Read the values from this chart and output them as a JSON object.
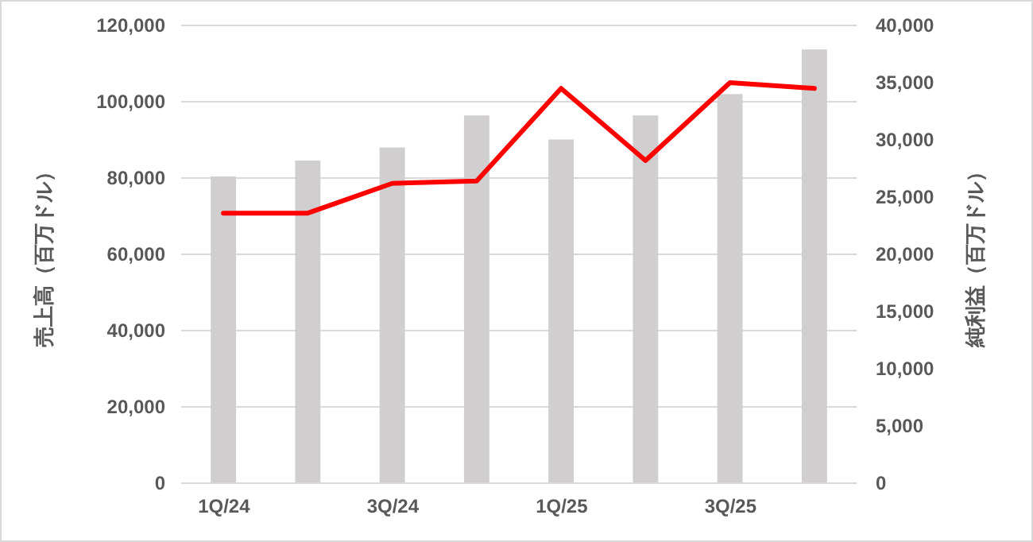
{
  "chart_data": {
    "type": "bar",
    "categories": [
      "1Q/24",
      null,
      "3Q/24",
      null,
      "1Q/25",
      null,
      "3Q/25",
      null
    ],
    "ylabel": "売上高（百万ドル）",
    "y2label": "純利益（百万ドル）",
    "series": [
      {
        "color": "#d0cece",
        "values": [
          80400,
          84600,
          88000,
          96400,
          90100,
          96400,
          102000,
          113700
        ]
      },
      {
        "type": "line",
        "axis": "y2",
        "color": "#ff0000",
        "values": [
          23600,
          23600,
          26200,
          26400,
          34500,
          28200,
          35000,
          34500
        ]
      }
    ],
    "ylim": [
      0,
      120000
    ],
    "yticks": [
      {
        "value": 0,
        "label": "0"
      },
      {
        "value": 20000,
        "label": "20,000"
      },
      {
        "value": 40000,
        "label": "40,000"
      },
      {
        "value": 60000,
        "label": "60,000"
      },
      {
        "value": 80000,
        "label": "80,000"
      },
      {
        "value": 100000,
        "label": "100,000"
      },
      {
        "value": 120000,
        "label": "120,000"
      }
    ],
    "y2lim": [
      0,
      40000
    ],
    "y2ticks": [
      {
        "value": 0,
        "label": "0"
      },
      {
        "value": 5000,
        "label": "5,000"
      },
      {
        "value": 10000,
        "label": "10,000"
      },
      {
        "value": 15000,
        "label": "15,000"
      },
      {
        "value": 20000,
        "label": "20,000"
      },
      {
        "value": 25000,
        "label": "25,000"
      },
      {
        "value": 30000,
        "label": "30,000"
      },
      {
        "value": 35000,
        "label": "35,000"
      },
      {
        "value": 40000,
        "label": "40,000"
      }
    ],
    "grid": "y",
    "marker": "none",
    "line_style": "solid"
  }
}
